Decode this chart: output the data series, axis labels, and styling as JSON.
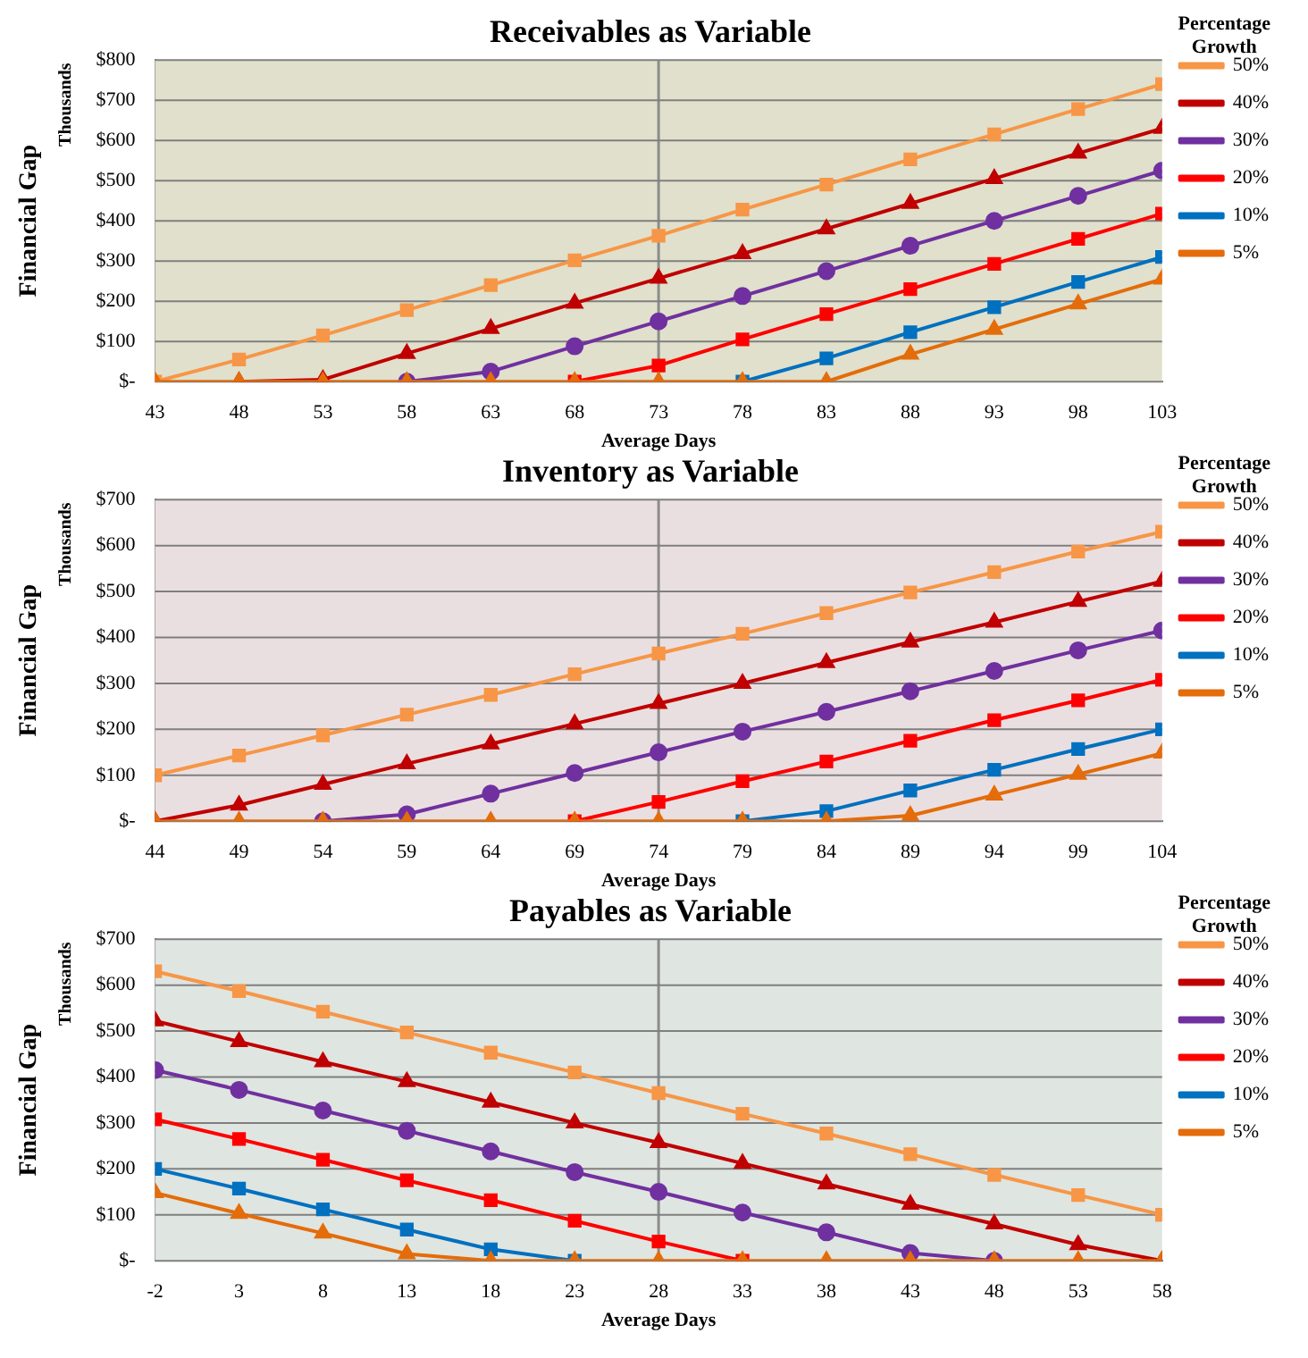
{
  "chart_data": [
    {
      "type": "line",
      "title": "Receivables as Variable",
      "xlabel": "Average Days",
      "ylabel": "Financial Gap",
      "annotations": [
        "Thousands"
      ],
      "legend_title": "Percentage Growth",
      "legend": "right",
      "grid": "y",
      "x": [
        43,
        48,
        53,
        58,
        63,
        68,
        73,
        78,
        83,
        88,
        93,
        98,
        103
      ],
      "xlim": [
        43,
        103
      ],
      "xticks": [
        43,
        48,
        53,
        58,
        63,
        68,
        73,
        78,
        83,
        88,
        93,
        98,
        103
      ],
      "ylim": [
        0,
        800
      ],
      "yticks": [
        {
          "value": 0,
          "label": "$-"
        },
        {
          "value": 100,
          "label": "$100"
        },
        {
          "value": 200,
          "label": "$200"
        },
        {
          "value": 300,
          "label": "$300"
        },
        {
          "value": 400,
          "label": "$400"
        },
        {
          "value": 500,
          "label": "$500"
        },
        {
          "value": 600,
          "label": "$600"
        },
        {
          "value": 700,
          "label": "$700"
        },
        {
          "value": 800,
          "label": "$800"
        }
      ],
      "ref_lines": [
        {
          "axis": "x",
          "value": 73,
          "color": "#8c8c8c"
        }
      ],
      "series": [
        {
          "name": "50%",
          "color": "#f79646",
          "marker": "square",
          "values": [
            0,
            55,
            115,
            178,
            240,
            302,
            363,
            428,
            490,
            553,
            615,
            678,
            740
          ]
        },
        {
          "name": "40%",
          "color": "#c00000",
          "marker": "triangle",
          "values": [
            null,
            0,
            5,
            70,
            132,
            195,
            257,
            318,
            380,
            443,
            505,
            568,
            630
          ]
        },
        {
          "name": "30%",
          "color": "#7030a0",
          "marker": "circle",
          "values": [
            null,
            null,
            null,
            0,
            25,
            88,
            150,
            213,
            275,
            338,
            400,
            462,
            525
          ]
        },
        {
          "name": "20%",
          "color": "#ff0000",
          "marker": "square",
          "values": [
            null,
            null,
            null,
            null,
            null,
            0,
            40,
            105,
            168,
            230,
            293,
            355,
            418
          ]
        },
        {
          "name": "10%",
          "color": "#0070c0",
          "marker": "square",
          "values": [
            null,
            null,
            null,
            null,
            null,
            null,
            null,
            0,
            58,
            123,
            185,
            248,
            310
          ]
        },
        {
          "name": "5%",
          "color": "#e46c0a",
          "marker": "triangle",
          "values": [
            0,
            0,
            0,
            0,
            0,
            0,
            0,
            0,
            0,
            68,
            130,
            193,
            255
          ]
        }
      ]
    },
    {
      "type": "line",
      "title": "Inventory as Variable",
      "xlabel": "Average Days",
      "ylabel": "Financial Gap",
      "annotations": [
        "Thousands"
      ],
      "legend_title": "Percentage Growth",
      "legend": "right",
      "grid": "y",
      "x": [
        44,
        49,
        54,
        59,
        64,
        69,
        74,
        79,
        84,
        89,
        94,
        99,
        104
      ],
      "xlim": [
        44,
        104
      ],
      "xticks": [
        44,
        49,
        54,
        59,
        64,
        69,
        74,
        79,
        84,
        89,
        94,
        99,
        104
      ],
      "ylim": [
        0,
        700
      ],
      "yticks": [
        {
          "value": 0,
          "label": "$-"
        },
        {
          "value": 100,
          "label": "$100"
        },
        {
          "value": 200,
          "label": "$200"
        },
        {
          "value": 300,
          "label": "$300"
        },
        {
          "value": 400,
          "label": "$400"
        },
        {
          "value": 500,
          "label": "$500"
        },
        {
          "value": 600,
          "label": "$600"
        },
        {
          "value": 700,
          "label": "$700"
        }
      ],
      "ref_lines": [
        {
          "axis": "x",
          "value": 74,
          "color": "#8c8c8c"
        }
      ],
      "series": [
        {
          "name": "50%",
          "color": "#f79646",
          "marker": "square",
          "values": [
            100,
            143,
            187,
            232,
            275,
            320,
            365,
            408,
            453,
            498,
            542,
            587,
            630
          ]
        },
        {
          "name": "40%",
          "color": "#c00000",
          "marker": "triangle",
          "values": [
            0,
            35,
            80,
            125,
            168,
            212,
            256,
            300,
            345,
            390,
            433,
            478,
            522
          ]
        },
        {
          "name": "30%",
          "color": "#7030a0",
          "marker": "circle",
          "values": [
            null,
            null,
            0,
            15,
            60,
            105,
            150,
            195,
            238,
            283,
            327,
            372,
            415
          ]
        },
        {
          "name": "20%",
          "color": "#ff0000",
          "marker": "square",
          "values": [
            null,
            null,
            null,
            null,
            null,
            0,
            42,
            87,
            130,
            175,
            220,
            263,
            308
          ]
        },
        {
          "name": "10%",
          "color": "#0070c0",
          "marker": "square",
          "values": [
            null,
            null,
            null,
            null,
            null,
            null,
            null,
            0,
            22,
            67,
            112,
            157,
            200
          ]
        },
        {
          "name": "5%",
          "color": "#e46c0a",
          "marker": "triangle",
          "values": [
            0,
            0,
            0,
            0,
            0,
            0,
            0,
            0,
            0,
            12,
            57,
            102,
            148
          ]
        }
      ]
    },
    {
      "type": "line",
      "title": "Payables as Variable",
      "xlabel": "Average Days",
      "ylabel": "Financial Gap",
      "annotations": [
        "Thousands"
      ],
      "legend_title": "Percentage Growth",
      "legend": "right",
      "grid": "y",
      "x": [
        -2,
        3,
        8,
        13,
        18,
        23,
        28,
        33,
        38,
        43,
        48,
        53,
        58
      ],
      "xlim": [
        -2,
        58
      ],
      "xticks": [
        -2,
        3,
        8,
        13,
        18,
        23,
        28,
        33,
        38,
        43,
        48,
        53,
        58
      ],
      "ylim": [
        0,
        700
      ],
      "yticks": [
        {
          "value": 0,
          "label": "$-"
        },
        {
          "value": 100,
          "label": "$100"
        },
        {
          "value": 200,
          "label": "$200"
        },
        {
          "value": 300,
          "label": "$300"
        },
        {
          "value": 400,
          "label": "$400"
        },
        {
          "value": 500,
          "label": "$500"
        },
        {
          "value": 600,
          "label": "$600"
        },
        {
          "value": 700,
          "label": "$700"
        }
      ],
      "ref_lines": [
        {
          "axis": "x",
          "value": 28,
          "color": "#8c8c8c"
        }
      ],
      "series": [
        {
          "name": "50%",
          "color": "#f79646",
          "marker": "square",
          "values": [
            630,
            587,
            542,
            497,
            453,
            410,
            365,
            320,
            277,
            232,
            187,
            143,
            100
          ]
        },
        {
          "name": "40%",
          "color": "#c00000",
          "marker": "triangle",
          "values": [
            522,
            477,
            433,
            390,
            345,
            300,
            257,
            212,
            167,
            123,
            80,
            35,
            0
          ]
        },
        {
          "name": "30%",
          "color": "#7030a0",
          "marker": "circle",
          "values": [
            415,
            372,
            327,
            283,
            238,
            193,
            150,
            105,
            62,
            17,
            0,
            null,
            null
          ]
        },
        {
          "name": "20%",
          "color": "#ff0000",
          "marker": "square",
          "values": [
            308,
            265,
            220,
            175,
            132,
            87,
            42,
            0,
            null,
            null,
            null,
            null,
            null
          ]
        },
        {
          "name": "10%",
          "color": "#0070c0",
          "marker": "square",
          "values": [
            200,
            157,
            112,
            68,
            25,
            0,
            null,
            null,
            null,
            null,
            null,
            null,
            null
          ]
        },
        {
          "name": "5%",
          "color": "#e46c0a",
          "marker": "triangle",
          "values": [
            148,
            103,
            60,
            15,
            0,
            0,
            0,
            0,
            0,
            0,
            0,
            0,
            0
          ]
        }
      ]
    }
  ]
}
